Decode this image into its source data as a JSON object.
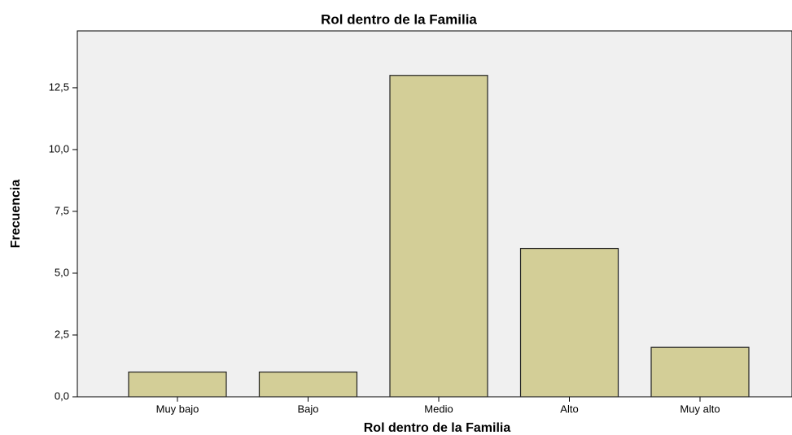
{
  "chart_data": {
    "type": "bar",
    "title": "Rol dentro de la Familia",
    "x_label": "Rol dentro de la Familia",
    "y_label": "Frecuencia",
    "categories": [
      "Muy bajo",
      "Bajo",
      "Medio",
      "Alto",
      "Muy alto"
    ],
    "values": [
      1,
      1,
      13,
      6,
      2
    ],
    "color": "#d3ce97",
    "ylim": [
      0,
      14.8
    ],
    "yticks": [
      {
        "value": 0,
        "label": "0,0"
      },
      {
        "value": 2.5,
        "label": "2,5"
      },
      {
        "value": 5,
        "label": "5,0"
      },
      {
        "value": 7.5,
        "label": "7,5"
      },
      {
        "value": 10,
        "label": "10,0"
      },
      {
        "value": 12.5,
        "label": "12,5"
      }
    ],
    "grid": false
  }
}
